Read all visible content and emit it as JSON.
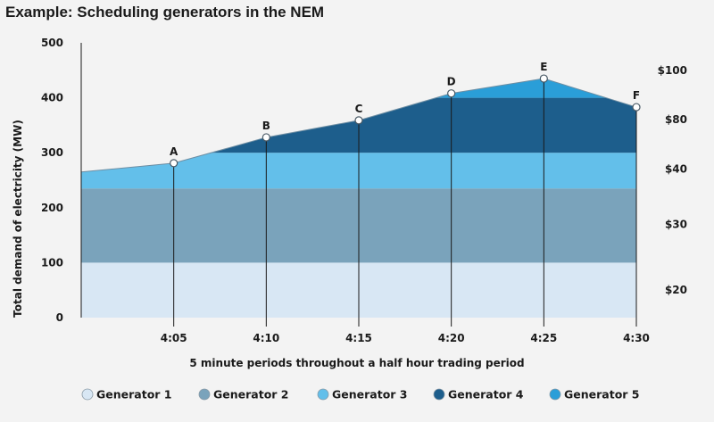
{
  "chart_data": {
    "type": "area",
    "title": "Example: Scheduling generators in the NEM",
    "xlabel": "5 minute periods throughout a half hour trading period",
    "ylabel": "Total demand of electricity (MW)",
    "x_ticks": [
      "4:05",
      "4:10",
      "4:15",
      "4:20",
      "4:25",
      "4:30"
    ],
    "y_ticks": [
      0,
      100,
      200,
      300,
      400,
      500
    ],
    "ylim": [
      0,
      500
    ],
    "price_ticks": [
      {
        "label": "$20",
        "y": 50
      },
      {
        "label": "$30",
        "y": 170
      },
      {
        "label": "$40",
        "y": 270
      },
      {
        "label": "$80",
        "y": 360
      },
      {
        "label": "$100",
        "y": 450
      }
    ],
    "points": [
      {
        "label": "",
        "x": 4.0,
        "y": 265
      },
      {
        "label": "A",
        "x": 5,
        "y": 281
      },
      {
        "label": "B",
        "x": 10,
        "y": 328
      },
      {
        "label": "C",
        "x": 15,
        "y": 359
      },
      {
        "label": "D",
        "x": 20,
        "y": 408
      },
      {
        "label": "E",
        "x": 25,
        "y": 435
      },
      {
        "label": "F",
        "x": 30,
        "y": 383
      }
    ],
    "x_start": 0,
    "x_end": 30,
    "series": [
      {
        "name": "Generator 1",
        "base": 0,
        "top": 100,
        "color": "#d8e7f4"
      },
      {
        "name": "Generator 2",
        "base": 100,
        "top": 235,
        "color": "#7aa3bb"
      },
      {
        "name": "Generator 3",
        "base": 235,
        "top": 300,
        "color": "#63bfea"
      },
      {
        "name": "Generator 4",
        "base": 300,
        "top": 400,
        "color": "#1d5e8c"
      },
      {
        "name": "Generator 5",
        "base": 400,
        "top": 500,
        "color": "#2a9ed8"
      }
    ],
    "legend_position": "bottom",
    "grid": false
  }
}
